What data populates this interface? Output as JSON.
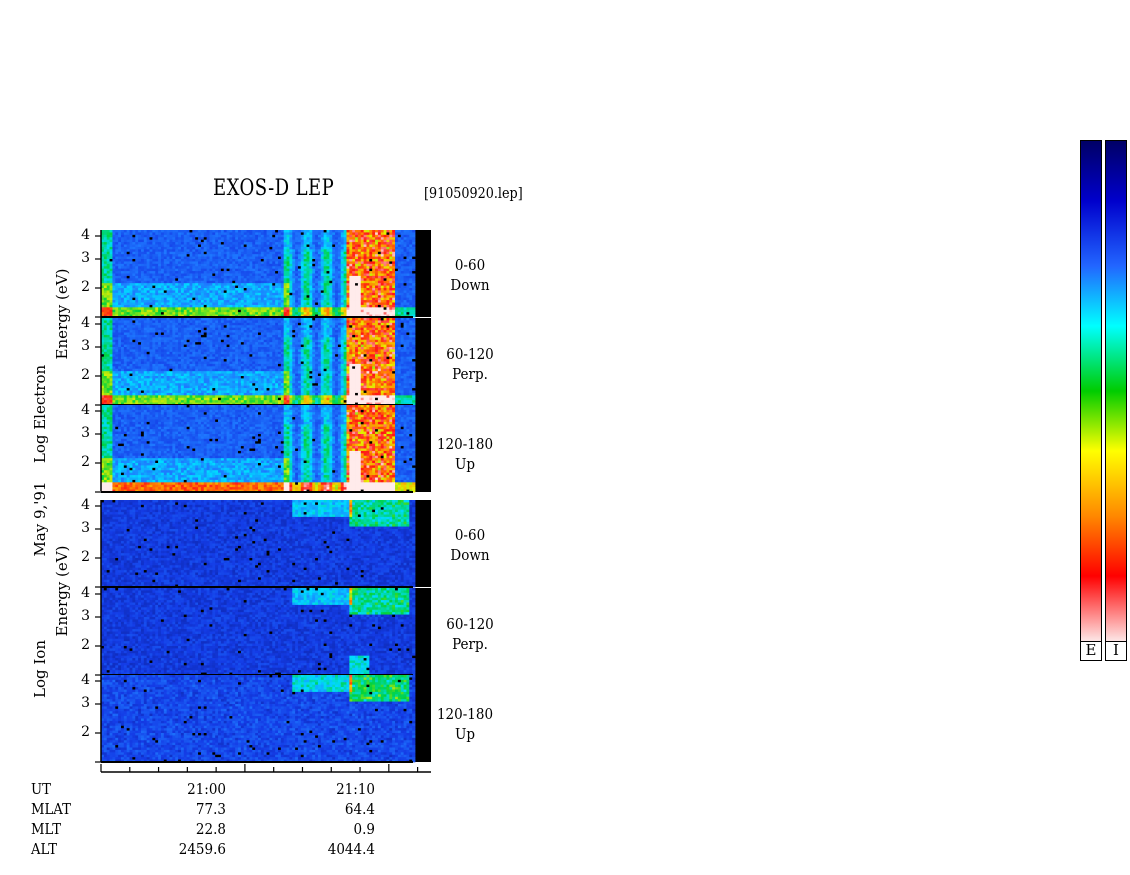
{
  "chart_data": {
    "type": "heatmap",
    "title": "EXOS-D LEP",
    "file_label": "[91050920.lep]",
    "date_label": "May 9,'91",
    "groups": [
      {
        "species": "Electron",
        "ylabel_line1": "Energy  (eV)",
        "ylabel_line2": "Log  Electron",
        "panels": [
          {
            "angle_range": "0-60",
            "direction": "Down"
          },
          {
            "angle_range": "60-120",
            "direction": "Perp."
          },
          {
            "angle_range": "120-180",
            "direction": "Up"
          }
        ]
      },
      {
        "species": "Ion",
        "ylabel_line1": "Energy  (eV)",
        "ylabel_line2": "Log  Ion",
        "panels": [
          {
            "angle_range": "0-60",
            "direction": "Down"
          },
          {
            "angle_range": "60-120",
            "direction": "Perp."
          },
          {
            "angle_range": "120-180",
            "direction": "Up"
          }
        ]
      }
    ],
    "y_ticks": [
      "4",
      "3",
      "2"
    ],
    "y_range": [
      1,
      4
    ],
    "x_range_minutes": [
      -10,
      13
    ],
    "x_ticks": [
      {
        "ut": "21:00",
        "mlat": "77.3",
        "mlt": "22.8",
        "alt": "2459.6"
      },
      {
        "ut": "21:10",
        "mlat": "64.4",
        "mlt": "0.9",
        "alt": "4044.4"
      }
    ],
    "footer_rows": [
      "UT",
      "MLAT",
      "MLT",
      "ALT"
    ],
    "colorbars": [
      "E",
      "I"
    ],
    "colormap": [
      "#fde6e6",
      "#ff0000",
      "#ff8800",
      "#ffff00",
      "#00cc00",
      "#00ffff",
      "#2266ff",
      "#0000cc",
      "#000066"
    ]
  }
}
